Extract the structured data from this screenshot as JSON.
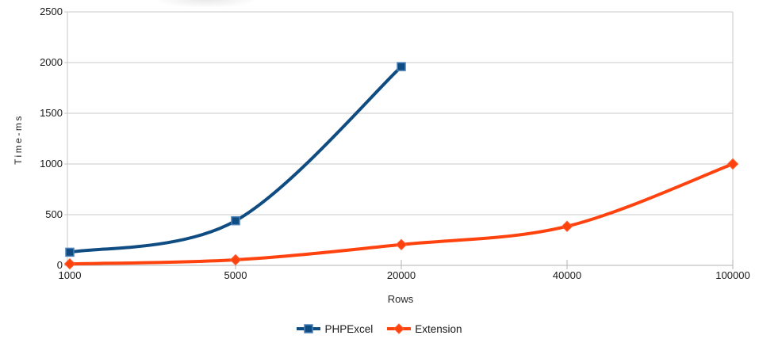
{
  "chart_data": {
    "type": "line",
    "title": "",
    "categories": [
      "1000",
      "5000",
      "20000",
      "40000",
      "100000"
    ],
    "series": [
      {
        "name": "PHPExcel",
        "marker": "square",
        "color": "#0f4c81",
        "marker_border": "#4b80b8",
        "values": [
          130,
          440,
          1960,
          null,
          null
        ]
      },
      {
        "name": "Extension",
        "marker": "diamond",
        "color": "#ff420e",
        "marker_border": "#ff5f2e",
        "values": [
          15,
          55,
          205,
          385,
          1000
        ]
      }
    ],
    "xlabel": "Rows",
    "ylabel": "Time-ms",
    "ylim": [
      0,
      2500
    ],
    "y_ticks": [
      0,
      500,
      1000,
      1500,
      2000,
      2500
    ],
    "grid": "horizontal",
    "grid_color": "#c9c9c9",
    "axis_color": "#b3b3b3",
    "text_color": "#1a1a1a",
    "legend_position": "bottom",
    "smooth": true,
    "background": "#ffffff"
  }
}
